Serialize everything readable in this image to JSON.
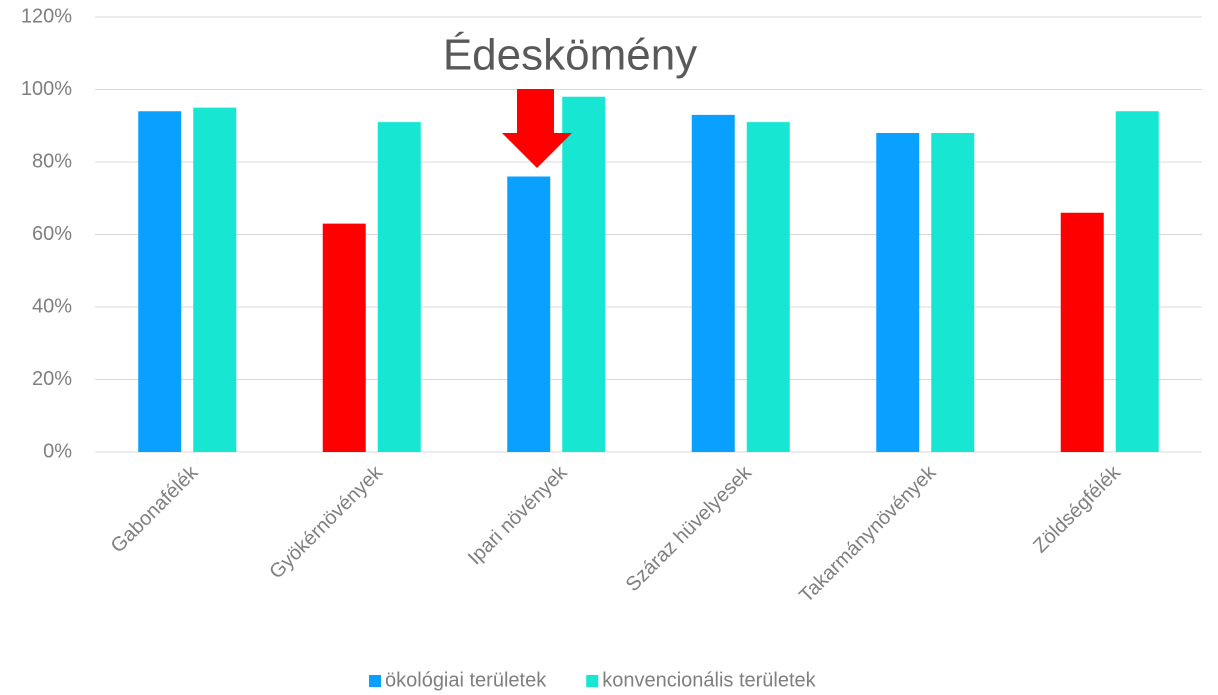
{
  "chart_data": {
    "type": "bar",
    "annotation": "Édeskömény",
    "categories": [
      "Gabonafélék",
      "Gyökérnövények",
      "Ipari növények",
      "Száraz hüvelyesek",
      "Takarmánynövények",
      "Zöldségfélék"
    ],
    "series": [
      {
        "name": "ökológiai területek",
        "color": "#0aa0ff",
        "point_colors": [
          "#0aa0ff",
          "#ff0000",
          "#0aa0ff",
          "#0aa0ff",
          "#0aa0ff",
          "#ff0000"
        ],
        "values": [
          94,
          63,
          76,
          93,
          88,
          66
        ]
      },
      {
        "name": "konvencionális területek",
        "color": "#17e6d2",
        "values": [
          95,
          91,
          98,
          91,
          88,
          94
        ]
      }
    ],
    "ylim": [
      0,
      120
    ],
    "yticks": [
      {
        "value": 0,
        "label": "0%"
      },
      {
        "value": 20,
        "label": "20%"
      },
      {
        "value": 40,
        "label": "40%"
      },
      {
        "value": 60,
        "label": "60%"
      },
      {
        "value": 80,
        "label": "80%"
      },
      {
        "value": 100,
        "label": "100%"
      },
      {
        "value": 120,
        "label": "120%"
      }
    ],
    "grid": true,
    "legend": "bottom"
  }
}
